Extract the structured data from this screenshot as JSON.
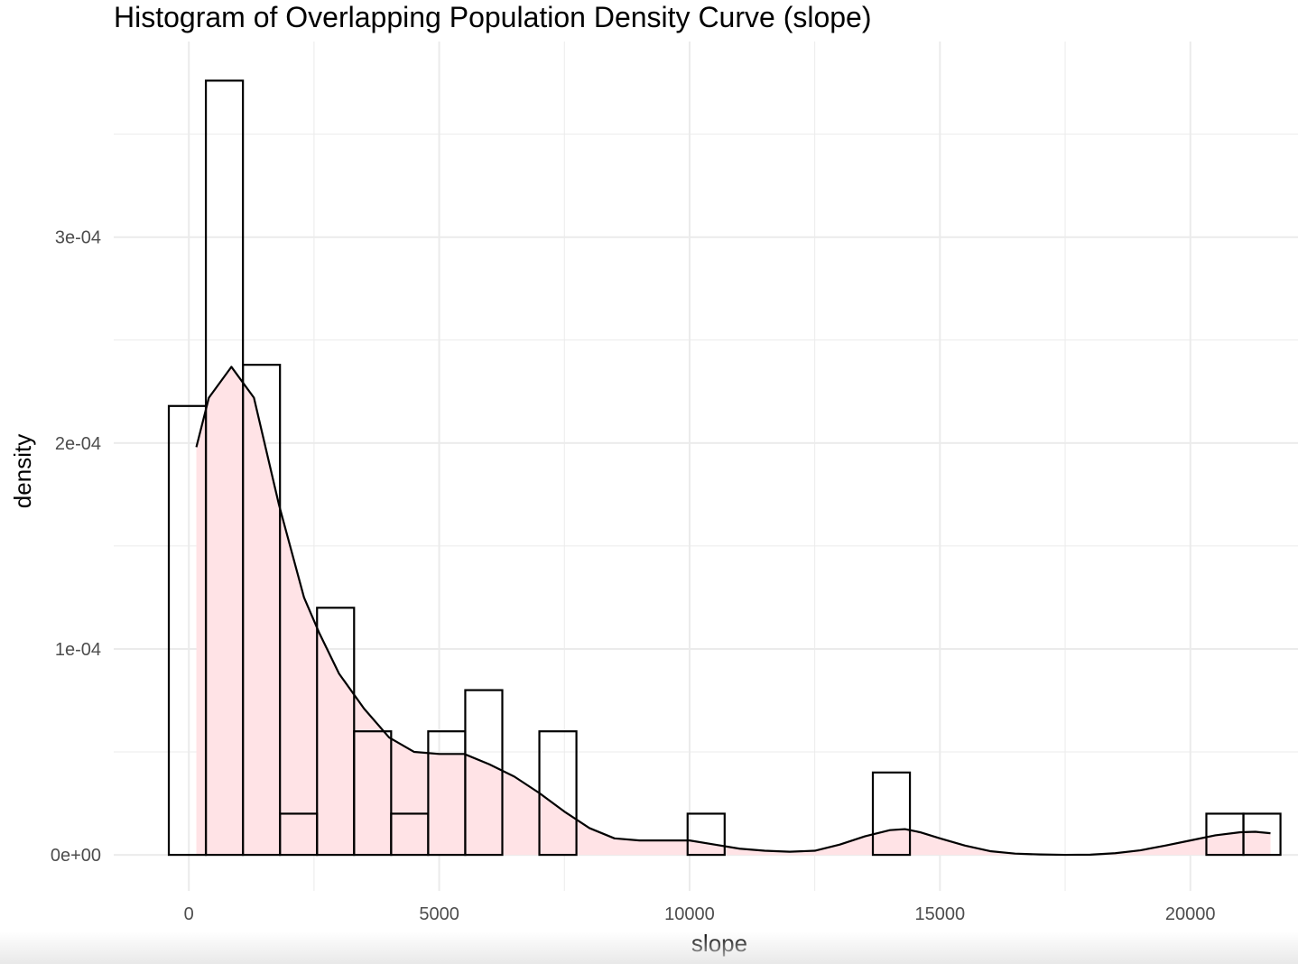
{
  "chart_data": {
    "type": "bar",
    "title": "Histogram of Overlapping Population Density Curve (slope)",
    "xlabel": "slope",
    "ylabel": "density",
    "xlim": [
      -1500,
      22150
    ],
    "ylim": [
      -1.75e-05,
      0.000395
    ],
    "x_ticks": [
      0,
      5000,
      10000,
      15000,
      20000
    ],
    "x_tick_labels": [
      "0",
      "5000",
      "10000",
      "15000",
      "20000"
    ],
    "y_ticks": [
      0,
      0.0001,
      0.0002,
      0.0003
    ],
    "y_tick_labels": [
      "0e+00",
      "1e-04",
      "2e-04",
      "3e-04"
    ],
    "grid": true,
    "histogram": {
      "bin_edges": [
        -400,
        340,
        1080,
        1820,
        2560,
        3300,
        4040,
        4780,
        5520,
        6260,
        7000,
        7740,
        8480,
        9220,
        9960,
        10700,
        11440,
        12180,
        12920,
        13660,
        14400,
        15140,
        15880,
        16620,
        17360,
        18100,
        18840,
        19580,
        20320,
        21060,
        21800
      ],
      "density": [
        0.000218,
        0.000376,
        0.000238,
        2e-05,
        0.00012,
        6e-05,
        2e-05,
        6e-05,
        8e-05,
        0,
        6e-05,
        0,
        0,
        0,
        2e-05,
        0,
        0,
        0,
        0,
        4e-05,
        0,
        0,
        0,
        0,
        0,
        0,
        0,
        0,
        2e-05,
        2e-05
      ],
      "fill": "#ffffff",
      "outline": "#000000"
    },
    "density_curve": {
      "x": [
        150,
        400,
        850,
        1300,
        1800,
        2300,
        2600,
        3000,
        3500,
        4000,
        4500,
        5000,
        5500,
        6000,
        6500,
        7000,
        7500,
        8000,
        8500,
        9000,
        9500,
        10000,
        10500,
        11000,
        11500,
        12000,
        12500,
        13000,
        13500,
        14000,
        14300,
        14600,
        15000,
        15500,
        16000,
        16500,
        17000,
        17500,
        18000,
        18500,
        19000,
        19500,
        20000,
        20500,
        21000,
        21300,
        21600
      ],
      "y": [
        0.000198,
        0.000222,
        0.000237,
        0.000222,
        0.00017,
        0.000125,
        0.000108,
        8.8e-05,
        7.1e-05,
        5.7e-05,
        5e-05,
        4.9e-05,
        4.9e-05,
        4.4e-05,
        3.8e-05,
        3e-05,
        2.1e-05,
        1.3e-05,
        8e-06,
        7e-06,
        7e-06,
        7e-06,
        5e-06,
        3e-06,
        2e-06,
        1.5e-06,
        2e-06,
        5e-06,
        9e-06,
        1.2e-05,
        1.25e-05,
        1.1e-05,
        8e-06,
        4.5e-06,
        1.8e-06,
        6e-07,
        2e-07,
        0,
        1e-07,
        8e-07,
        2.2e-06,
        4.5e-06,
        7e-06,
        9.5e-06,
        1.1e-05,
        1.12e-05,
        1.05e-05
      ],
      "fill": "#ffe3e6",
      "line": "#000000"
    },
    "background": "#ffffff",
    "grid_color": "#ebebeb"
  }
}
